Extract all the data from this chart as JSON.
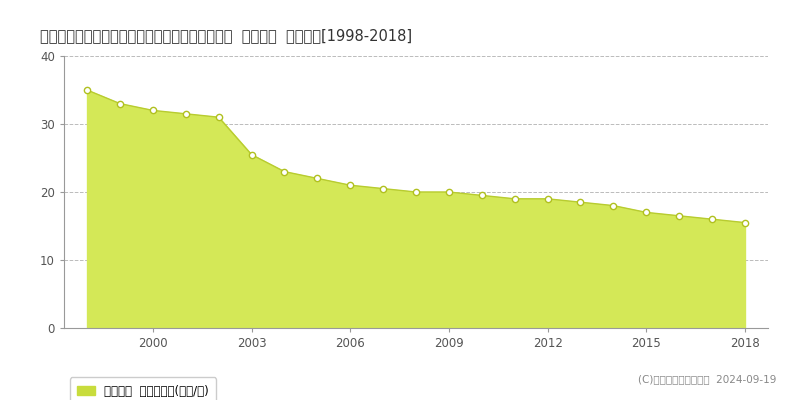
{
  "title": "愛知県知多郡武豊町大字東大高字北浜田１６番外  公示地価  地価推移[1998-2018]",
  "years": [
    1998,
    1999,
    2000,
    2001,
    2002,
    2003,
    2004,
    2005,
    2006,
    2007,
    2008,
    2009,
    2010,
    2011,
    2012,
    2013,
    2014,
    2015,
    2016,
    2017,
    2018
  ],
  "values": [
    35.0,
    33.0,
    32.0,
    31.5,
    31.0,
    25.5,
    23.0,
    22.0,
    21.0,
    20.5,
    20.0,
    20.0,
    19.5,
    19.0,
    19.0,
    18.5,
    18.0,
    17.0,
    16.5,
    16.0,
    15.5
  ],
  "fill_color": "#d4e857",
  "line_color": "#b8cc30",
  "marker_facecolor": "#ffffff",
  "marker_edgecolor": "#b0c020",
  "grid_color": "#bbbbbb",
  "bg_color": "#ffffff",
  "ylim": [
    0,
    40
  ],
  "xlim": [
    1997.3,
    2018.7
  ],
  "yticks": [
    0,
    10,
    20,
    30,
    40
  ],
  "xticks": [
    2000,
    2003,
    2006,
    2009,
    2012,
    2015,
    2018
  ],
  "legend_label": "公示地価  平均坪単価(万円/坪)",
  "legend_color": "#c8dc3c",
  "copyright_text": "(C)土地価格ドットコム  2024-09-19",
  "title_fontsize": 10.5,
  "tick_fontsize": 8.5,
  "legend_fontsize": 8.5
}
